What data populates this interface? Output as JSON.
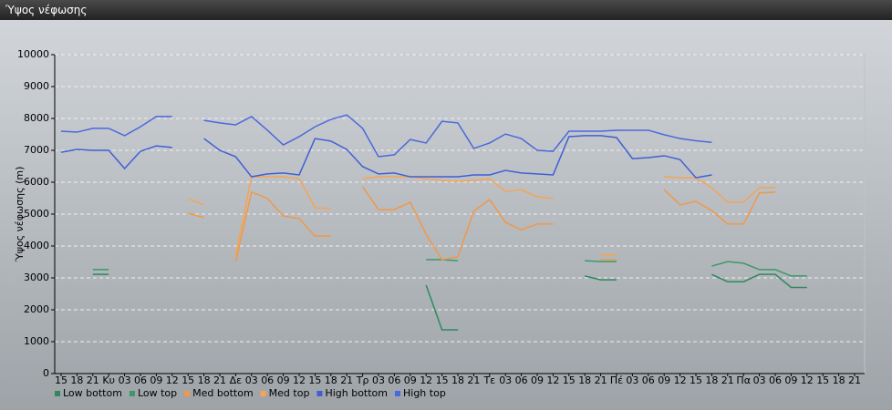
{
  "window_title": "Ύψος νέφωσης",
  "chart_data": {
    "type": "line",
    "y_label": "Ύψος νέφωσης (m)",
    "categories": [
      "15",
      "18",
      "21",
      "Κυ",
      "03",
      "06",
      "09",
      "12",
      "15",
      "18",
      "21",
      "Δε",
      "03",
      "06",
      "09",
      "12",
      "15",
      "18",
      "21",
      "Τρ",
      "03",
      "06",
      "09",
      "12",
      "15",
      "18",
      "21",
      "Τε",
      "03",
      "06",
      "09",
      "12",
      "15",
      "18",
      "21",
      "Πέ",
      "03",
      "06",
      "09",
      "12",
      "15",
      "18",
      "21",
      "Πα",
      "03",
      "06",
      "09",
      "12",
      "15",
      "18",
      "21"
    ],
    "ylim": [
      0,
      10000
    ],
    "yticks": [
      0,
      1000,
      2000,
      3000,
      4000,
      5000,
      6000,
      7000,
      8000,
      9000,
      10000
    ],
    "grid": true,
    "legend": "bottom-left",
    "series": [
      {
        "name": "Low bottom",
        "color": "#2e8a5c",
        "values": [
          null,
          null,
          3110,
          3110,
          null,
          null,
          null,
          null,
          null,
          null,
          null,
          null,
          null,
          null,
          null,
          null,
          null,
          null,
          null,
          null,
          null,
          null,
          null,
          2770,
          1370,
          1370,
          null,
          null,
          null,
          null,
          null,
          null,
          null,
          3060,
          2940,
          2940,
          null,
          null,
          null,
          null,
          null,
          3110,
          2880,
          2880,
          3110,
          3110,
          2700,
          2700,
          null,
          null,
          null
        ]
      },
      {
        "name": "Low top",
        "color": "#3a9a66",
        "values": [
          null,
          null,
          3260,
          3260,
          null,
          null,
          null,
          null,
          null,
          null,
          null,
          null,
          null,
          null,
          null,
          null,
          null,
          null,
          null,
          null,
          null,
          null,
          null,
          3570,
          3570,
          3540,
          null,
          null,
          null,
          null,
          null,
          null,
          null,
          3540,
          3510,
          3510,
          null,
          null,
          null,
          null,
          null,
          3370,
          3510,
          3460,
          3260,
          3260,
          3060,
          3060,
          null,
          null,
          null
        ]
      },
      {
        "name": "Med bottom",
        "color": "#f09848",
        "values": [
          null,
          null,
          null,
          null,
          null,
          null,
          null,
          null,
          5030,
          4890,
          null,
          3510,
          5690,
          5490,
          4940,
          4860,
          4310,
          4310,
          null,
          5860,
          5140,
          5140,
          5370,
          4370,
          3570,
          3660,
          5090,
          5460,
          4740,
          4510,
          4690,
          4690,
          null,
          null,
          3570,
          3570,
          null,
          null,
          5770,
          5290,
          5400,
          5110,
          4690,
          4690,
          5660,
          5690,
          null,
          null,
          null,
          null,
          null
        ]
      },
      {
        "name": "Med top",
        "color": "#f5a453",
        "values": [
          null,
          null,
          null,
          null,
          null,
          null,
          null,
          null,
          5490,
          5290,
          null,
          3710,
          6170,
          6170,
          6170,
          6110,
          5200,
          5170,
          null,
          6110,
          6170,
          6170,
          6170,
          6110,
          6060,
          6030,
          6060,
          6110,
          5710,
          5770,
          5540,
          5490,
          null,
          null,
          3710,
          3710,
          null,
          null,
          6170,
          6140,
          6140,
          5830,
          5370,
          5370,
          5830,
          5830,
          null,
          null,
          null,
          null,
          null
        ]
      },
      {
        "name": "High bottom",
        "color": "#3f5fd6",
        "values": [
          6940,
          7030,
          7000,
          7000,
          6430,
          6970,
          7140,
          7090,
          null,
          7370,
          7000,
          6800,
          6170,
          6260,
          6290,
          6230,
          7370,
          7290,
          7030,
          6490,
          6260,
          6290,
          6170,
          6170,
          6170,
          6170,
          6230,
          6230,
          6370,
          6290,
          6260,
          6230,
          7430,
          7460,
          7460,
          7400,
          6740,
          6770,
          6830,
          6710,
          6140,
          6230,
          null,
          null,
          null,
          null,
          null,
          null,
          null,
          null,
          null
        ]
      },
      {
        "name": "High top",
        "color": "#4a68dc",
        "values": [
          7600,
          7570,
          7690,
          7690,
          7460,
          7740,
          8060,
          8060,
          null,
          7940,
          7860,
          7800,
          8060,
          7630,
          7170,
          7430,
          7740,
          7970,
          8110,
          7690,
          6800,
          6860,
          7340,
          7230,
          7910,
          7860,
          7060,
          7230,
          7510,
          7370,
          7000,
          6970,
          7600,
          7600,
          7600,
          7630,
          7630,
          7630,
          7490,
          7370,
          7300,
          7250,
          null,
          null,
          null,
          null,
          null,
          null,
          null,
          null,
          null
        ]
      }
    ]
  }
}
